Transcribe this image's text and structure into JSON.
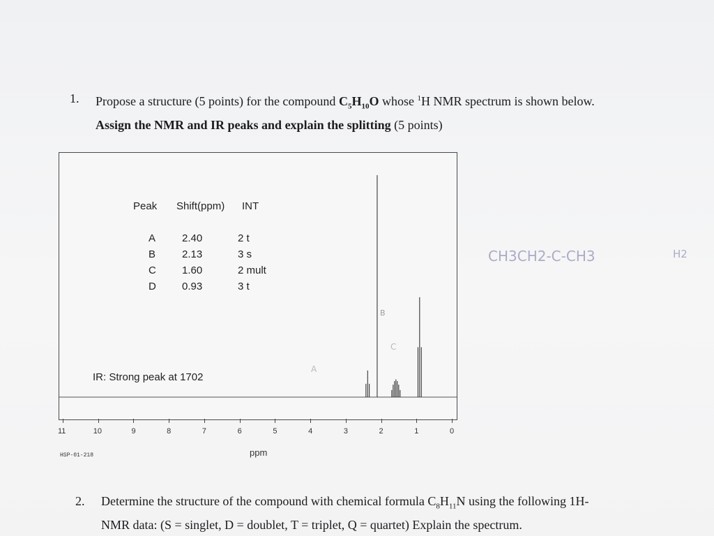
{
  "question1": {
    "number": "1.",
    "line1_a": "Propose a structure (5 points) for the compound ",
    "formula": "C",
    "f_sub1": "5",
    "f_h": "H",
    "f_sub2": "10",
    "f_o": "O",
    "line1_b": " whose ",
    "sup1": "1",
    "line1_c": "H NMR spectrum is shown below.",
    "line2_bold": "Assign the NMR and IR peaks and explain the splitting",
    "line2_plain": " (5 points)"
  },
  "peak_table": {
    "headers": [
      "Peak",
      "Shift(ppm)",
      "INT"
    ],
    "rows": [
      {
        "peak": "A",
        "shift": "2.40",
        "int": "2 t"
      },
      {
        "peak": "B",
        "shift": "2.13",
        "int": "3 s"
      },
      {
        "peak": "C",
        "shift": "1.60",
        "int": "2 mult"
      },
      {
        "peak": "D",
        "shift": "0.93",
        "int": "3 t"
      }
    ]
  },
  "ir_note": "IR: Strong peak at 1702",
  "chart_data": {
    "type": "line",
    "xlabel": "ppm",
    "xlim": [
      11,
      -0.5
    ],
    "x_ticks": [
      "11",
      "10",
      "9",
      "8",
      "7",
      "6",
      "5",
      "4",
      "3",
      "2",
      "1",
      "0"
    ],
    "peaks": [
      {
        "label": "A",
        "shift": 2.4,
        "height": 0.12,
        "multiplicity": "t"
      },
      {
        "label": "B",
        "shift": 2.13,
        "height": 1.0,
        "multiplicity": "s"
      },
      {
        "label": "C",
        "shift": 1.6,
        "height": 0.08,
        "multiplicity": "mult"
      },
      {
        "label": "D",
        "shift": 0.93,
        "height": 0.45,
        "multiplicity": "t"
      }
    ],
    "footer": "HSP-01-218"
  },
  "handwritten": {
    "structure_note": "CH3CH2-C-CH3",
    "h2_note": "H2",
    "b_note": "B",
    "a_note": "A",
    "c_note": "C"
  },
  "question2": {
    "number": "2.",
    "line1_a": "Determine the structure of the compound with chemical formula C",
    "sub1": "8",
    "h": "H",
    "sub2": "11",
    "line1_b": "N using the following 1H-",
    "line2": "NMR data: (S = singlet, D = doublet, T = triplet, Q = quartet) Explain the spectrum."
  }
}
